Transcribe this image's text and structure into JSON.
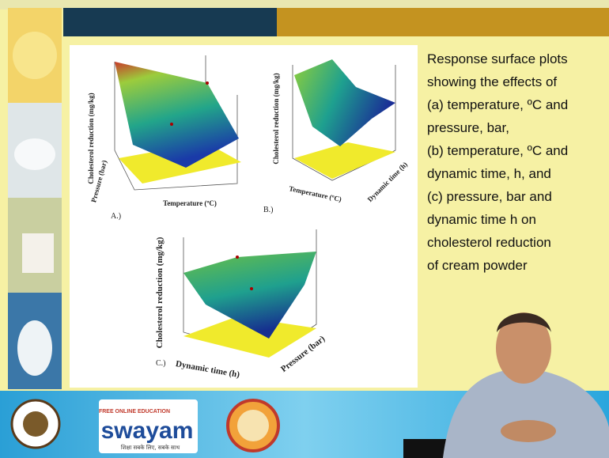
{
  "slide": {
    "description_lines": [
      "Response surface plots",
      "showing the effects of",
      "(a) temperature, ºC and",
      "pressure, bar,",
      "(b) temperature, ºC and",
      "dynamic time, h, and",
      "(c) pressure, bar and",
      "dynamic time h on",
      "cholesterol reduction",
      "of cream powder"
    ]
  },
  "plots": [
    {
      "label": "A.)",
      "z_axis": "Cholesterol reduction (mg/kg)",
      "x_axis": "Temperature (ºC)",
      "y_axis": "Pressure (bar)"
    },
    {
      "label": "B.)",
      "z_axis": "Cholesterol reduction (mg/kg)",
      "x_axis": "Temperature (ºC)",
      "y_axis": "Dynamic time (h)"
    },
    {
      "label": "C.)",
      "z_axis": "Cholesterol reduction (mg/kg)",
      "x_axis": "Dynamic time (h)",
      "y_axis": "Pressure (bar)"
    }
  ],
  "footer": {
    "logo_tagline": "FREE ONLINE EDUCATION",
    "logo_name": "swayam",
    "logo_sub": "शिक्षा सबके लिए, सबके साथ"
  }
}
